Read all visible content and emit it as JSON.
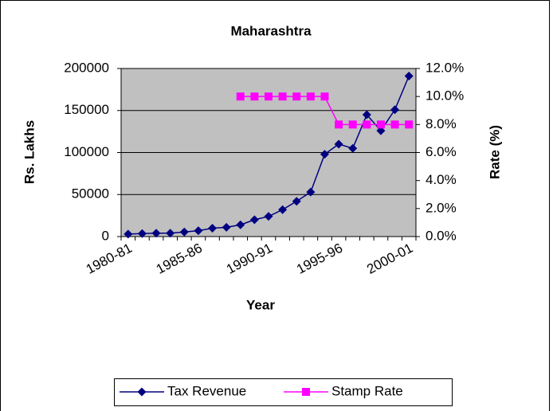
{
  "chart_data": {
    "type": "line",
    "title": "Maharashtra",
    "xlabel": "Year",
    "ylabel": "Rs. Lakhs",
    "y2label": "Rate (%)",
    "categories": [
      "1980-81",
      null,
      null,
      null,
      null,
      "1985-86",
      null,
      null,
      null,
      null,
      "1990-91",
      null,
      null,
      null,
      null,
      "1995-96",
      null,
      null,
      null,
      null,
      "2000-01"
    ],
    "series": [
      {
        "name": "Tax Revenue",
        "color": "#000080",
        "marker": "diamond",
        "values": [
          3000,
          3500,
          4000,
          4000,
          5500,
          7000,
          10000,
          11000,
          14000,
          20000,
          24000,
          32000,
          42000,
          53000,
          98000,
          110000,
          105000,
          145000,
          126000,
          151000,
          191000
        ]
      },
      {
        "name": "Stamp Rate",
        "color": "#FF00FF",
        "marker": "square",
        "axis": "y2",
        "values": [
          null,
          null,
          null,
          null,
          null,
          null,
          null,
          null,
          10,
          10,
          10,
          10,
          10,
          10,
          10,
          8,
          8,
          8,
          8,
          8,
          8
        ]
      }
    ],
    "ylim": [
      0,
      200000
    ],
    "yticks": [
      0,
      50000,
      100000,
      150000,
      200000
    ],
    "y2lim": [
      0,
      12
    ],
    "y2ticks": [
      {
        "value": 0,
        "label": "0.0%"
      },
      {
        "value": 2,
        "label": "2.0%"
      },
      {
        "value": 4,
        "label": "4.0%"
      },
      {
        "value": 6,
        "label": "6.0%"
      },
      {
        "value": 8,
        "label": "8.0%"
      },
      {
        "value": 10,
        "label": "10.0%"
      },
      {
        "value": 12,
        "label": "12.0%"
      }
    ],
    "grid": true,
    "legend": "bottom",
    "plot_background": "#C0C0C0"
  }
}
